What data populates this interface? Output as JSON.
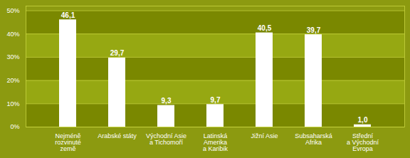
{
  "chart_data": {
    "type": "bar",
    "categories": [
      "Nejméně\nrozvinuté\nzemě",
      "Arabské státy",
      "Východní Asie\na Tichomoří",
      "Latinská\nAmerika\na Karibik",
      "Jižní Asie",
      "Subsaharská\nAfrika",
      "Střední\na Východní\nEvropa"
    ],
    "values": [
      46.1,
      29.7,
      9.3,
      9.7,
      40.5,
      39.7,
      1.0
    ],
    "value_labels": [
      "46,1",
      "29,7",
      "9,3",
      "9,7",
      "40,5",
      "39,7",
      "1,0"
    ],
    "data_labels": true,
    "color": "#ffffff",
    "ylim": [
      0,
      52
    ],
    "yticks": [
      {
        "value": 0,
        "label": "0%"
      },
      {
        "value": 10,
        "label": "10%"
      },
      {
        "value": 20,
        "label": "20%"
      },
      {
        "value": 30,
        "label": "30%"
      },
      {
        "value": 40,
        "label": "40%"
      },
      {
        "value": 50,
        "label": "50%"
      }
    ],
    "grid": true
  }
}
